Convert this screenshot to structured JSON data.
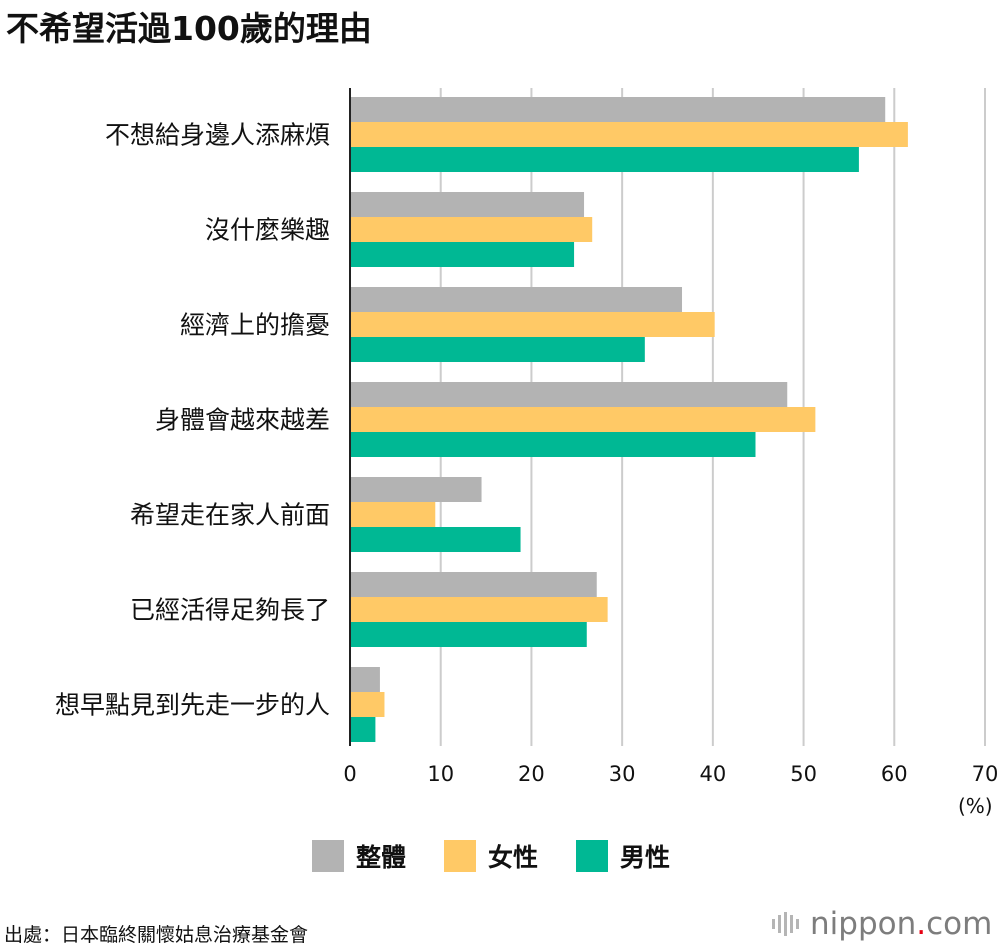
{
  "title": "不希望活過100歲的理由",
  "unit_label": "(%)",
  "source": "出處：日本臨終關懷姑息治療基金會",
  "logo": {
    "name": "nippon",
    "dot": ".",
    "suffix": "com",
    "icon": "sound-bars-icon"
  },
  "colors": {
    "overall": "#b3b3b3",
    "female": "#ffc966",
    "male": "#00b894",
    "grid": "#cccccc",
    "axis": "#222222"
  },
  "legend": [
    {
      "label": "整體",
      "color": "#b3b3b3"
    },
    {
      "label": "女性",
      "color": "#ffc966"
    },
    {
      "label": "男性",
      "color": "#00b894"
    }
  ],
  "chart_data": {
    "type": "bar",
    "orientation": "horizontal",
    "title": "不希望活過100歲的理由",
    "xlabel": "(%)",
    "ylabel": "",
    "xlim": [
      0,
      70
    ],
    "xticks": [
      0,
      10,
      20,
      30,
      40,
      50,
      60,
      70
    ],
    "grid": true,
    "legend_position": "bottom",
    "categories": [
      "不想給身邊人添麻煩",
      "沒什麼樂趣",
      "經濟上的擔憂",
      "身體會越來越差",
      "希望走在家人前面",
      "已經活得足夠長了",
      "想早點見到先走一步的人"
    ],
    "series": [
      {
        "name": "整體",
        "color": "#b3b3b3",
        "values": [
          59.0,
          25.8,
          36.6,
          48.2,
          14.5,
          27.2,
          3.3
        ]
      },
      {
        "name": "女性",
        "color": "#ffc966",
        "values": [
          61.5,
          26.7,
          40.2,
          51.3,
          9.4,
          28.4,
          3.8
        ]
      },
      {
        "name": "男性",
        "color": "#00b894",
        "values": [
          56.1,
          24.7,
          32.5,
          44.7,
          18.8,
          26.1,
          2.8
        ]
      }
    ]
  }
}
